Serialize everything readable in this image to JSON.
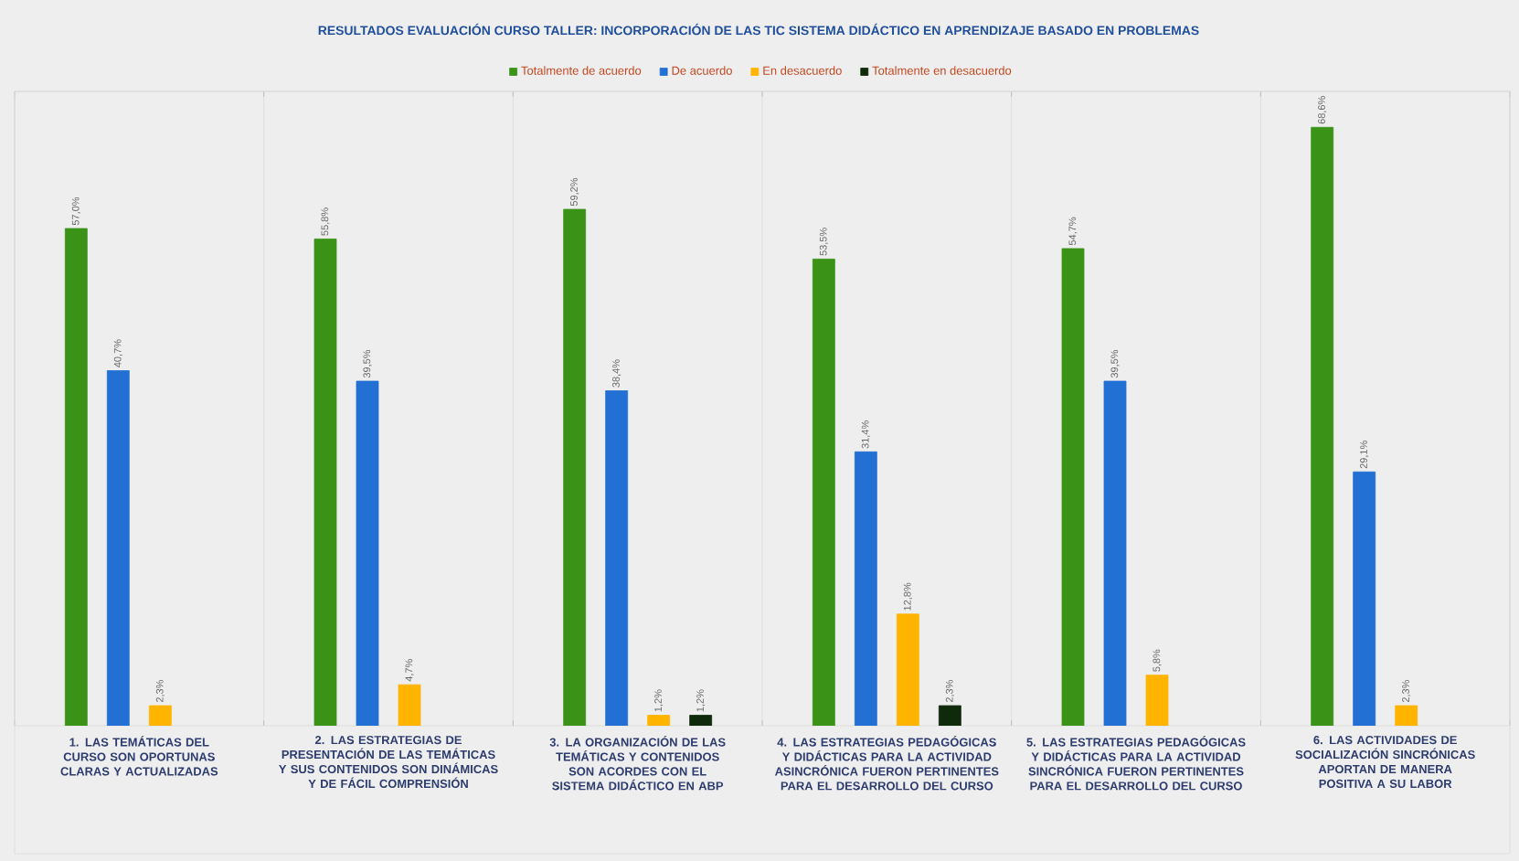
{
  "chart_data": {
    "type": "bar",
    "title": "RESULTADOS EVALUACIÓN CURSO TALLER: INCORPORACIÓN DE LAS TIC SISTEMA DIDÁCTICO EN APRENDIZAJE BASADO EN PROBLEMAS",
    "categories": [
      "1. LAS TEMÁTICAS DEL CURSO SON OPORTUNAS CLARAS Y ACTUALIZADAS",
      "2. LAS ESTRATEGIAS DE PRESENTACIÓN DE LAS TEMÁTICAS Y SUS CONTENIDOS SON DINÁMICAS Y DE FÁCIL COMPRENSIÓN",
      "3. LA ORGANIZACIÓN DE LAS TEMÁTICAS Y CONTENIDOS SON ACORDES CON EL SISTEMA DIDÁCTICO EN ABP",
      "4. LAS ESTRATEGIAS PEDAGÓGICAS Y DIDÁCTICAS PARA LA ACTIVIDAD ASINCRÓNICA FUERON PERTINENTES PARA EL DESARROLLO DEL CURSO",
      "5. LAS ESTRATEGIAS PEDAGÓGICAS Y DIDÁCTICAS PARA LA ACTIVIDAD SINCRÓNICA FUERON PERTINENTES PARA EL DESARROLLO DEL CURSO",
      "6. LAS ACTIVIDADES DE SOCIALIZACIÓN SINCRÓNICAS APORTAN DE MANERA POSITIVA A SU LABOR"
    ],
    "series": [
      {
        "name": "Totalmente de acuerdo",
        "color": "#3a9317",
        "values": [
          57.0,
          55.8,
          59.2,
          53.5,
          54.7,
          68.6
        ],
        "value_labels": [
          "57,0%",
          "55,8%",
          "59,2%",
          "53,5%",
          "54,7%",
          "68,6%"
        ]
      },
      {
        "name": "De acuerdo",
        "color": "#2270d4",
        "values": [
          40.7,
          39.5,
          38.4,
          31.4,
          39.5,
          29.1
        ],
        "value_labels": [
          "40,7%",
          "39,5%",
          "38,4%",
          "31,4%",
          "39,5%",
          "29,1%"
        ]
      },
      {
        "name": "En desacuerdo",
        "color": "#ffb400",
        "values": [
          2.3,
          4.7,
          1.2,
          12.8,
          5.8,
          2.3
        ],
        "value_labels": [
          "2,3%",
          "4,7%",
          "1,2%",
          "12,8%",
          "5,8%",
          "2,3%"
        ]
      },
      {
        "name": "Totalmente en desacuerdo",
        "color": "#0f2a0a",
        "values": [
          null,
          null,
          1.2,
          2.3,
          null,
          null
        ],
        "value_labels": [
          null,
          null,
          "1,2%",
          "2,3%",
          null,
          null
        ]
      }
    ],
    "tick_labels": "x",
    "grid": "x",
    "legend": "top"
  }
}
